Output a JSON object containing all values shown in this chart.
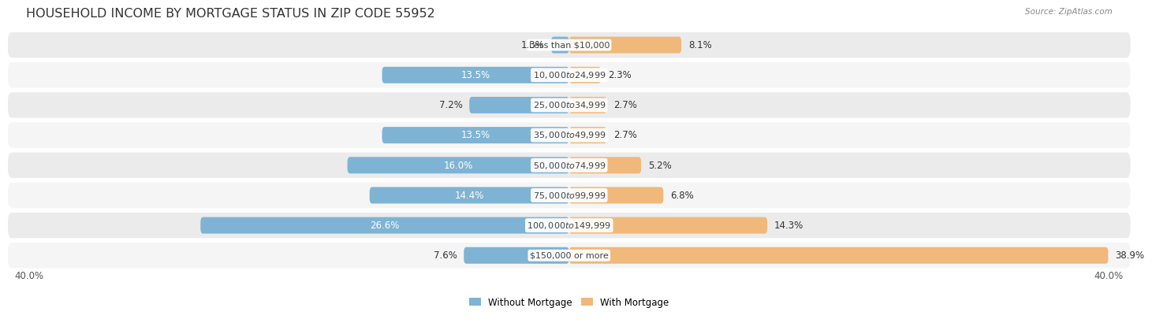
{
  "title": "HOUSEHOLD INCOME BY MORTGAGE STATUS IN ZIP CODE 55952",
  "source": "Source: ZipAtlas.com",
  "categories": [
    "Less than $10,000",
    "$10,000 to $24,999",
    "$25,000 to $34,999",
    "$35,000 to $49,999",
    "$50,000 to $74,999",
    "$75,000 to $99,999",
    "$100,000 to $149,999",
    "$150,000 or more"
  ],
  "without_mortgage": [
    1.3,
    13.5,
    7.2,
    13.5,
    16.0,
    14.4,
    26.6,
    7.6
  ],
  "with_mortgage": [
    8.1,
    2.3,
    2.7,
    2.7,
    5.2,
    6.8,
    14.3,
    38.9
  ],
  "without_color": "#7fb3d3",
  "with_color": "#f0b87a",
  "axis_limit": 40.0,
  "title_fontsize": 11.5,
  "label_fontsize": 8.5,
  "category_fontsize": 8,
  "legend_fontsize": 8.5,
  "background_color": "#ffffff",
  "row_colors": [
    "#ebebeb",
    "#f5f5f5"
  ]
}
